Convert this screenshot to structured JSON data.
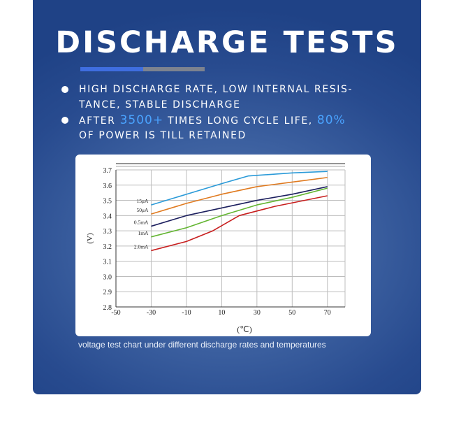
{
  "title": "DISCHARGE TESTS",
  "bullets": [
    {
      "line1": "HIGH DISCHARGE RATE, LOW INTERNAL RESIS-",
      "line2": "TANCE, STABLE DISCHARGE"
    },
    {
      "pre": "AFTER",
      "hl1": "3500+",
      "mid": "TIMES LONG CYCLE LIFE,",
      "hl2": "80%",
      "line2": "OF POWER IS TILL RETAINED"
    }
  ],
  "caption": "voltage test chart under different discharge rates and temperatures",
  "colors": {
    "accent_blue": "#3f6ee0",
    "accent_gray": "#7d838f",
    "highlight": "#4aa3ff"
  },
  "chart_data": {
    "type": "line",
    "xlabel": "(℃)",
    "ylabel": "(V)",
    "xlim": [
      -50,
      80
    ],
    "ylim": [
      2.8,
      3.7
    ],
    "grid": true,
    "xticks": [
      -50,
      -30,
      -10,
      10,
      30,
      50,
      70
    ],
    "yticks": [
      2.8,
      2.9,
      3.0,
      3.1,
      3.2,
      3.3,
      3.4,
      3.5,
      3.6,
      3.7
    ],
    "xtick_labels": [
      "-50",
      "-30",
      "-10",
      "10",
      "30",
      "50",
      "70"
    ],
    "ytick_labels": [
      "2.8",
      "2.9",
      "3.0",
      "3.1",
      "3.2",
      "3.3",
      "3.4",
      "3.5",
      "3.6",
      "3.7"
    ],
    "series": [
      {
        "name": "15μA",
        "color": "#2a9ad8",
        "x": [
          -30,
          -10,
          10,
          25,
          50,
          70
        ],
        "y": [
          3.47,
          3.54,
          3.61,
          3.66,
          3.68,
          3.69
        ]
      },
      {
        "name": "50μA",
        "color": "#e07a1f",
        "x": [
          -30,
          -10,
          10,
          30,
          50,
          70
        ],
        "y": [
          3.41,
          3.48,
          3.54,
          3.59,
          3.62,
          3.65
        ]
      },
      {
        "name": "0.5mA",
        "color": "#1c1f5e",
        "x": [
          -30,
          -10,
          10,
          30,
          50,
          70
        ],
        "y": [
          3.33,
          3.4,
          3.45,
          3.5,
          3.54,
          3.59
        ]
      },
      {
        "name": "1mA",
        "color": "#63b531",
        "x": [
          -30,
          -10,
          10,
          30,
          50,
          70
        ],
        "y": [
          3.26,
          3.32,
          3.4,
          3.47,
          3.52,
          3.58
        ]
      },
      {
        "name": "2.0mA",
        "color": "#c81e1e",
        "x": [
          -30,
          -10,
          5,
          20,
          40,
          70
        ],
        "y": [
          3.17,
          3.23,
          3.3,
          3.4,
          3.46,
          3.53
        ]
      }
    ]
  }
}
